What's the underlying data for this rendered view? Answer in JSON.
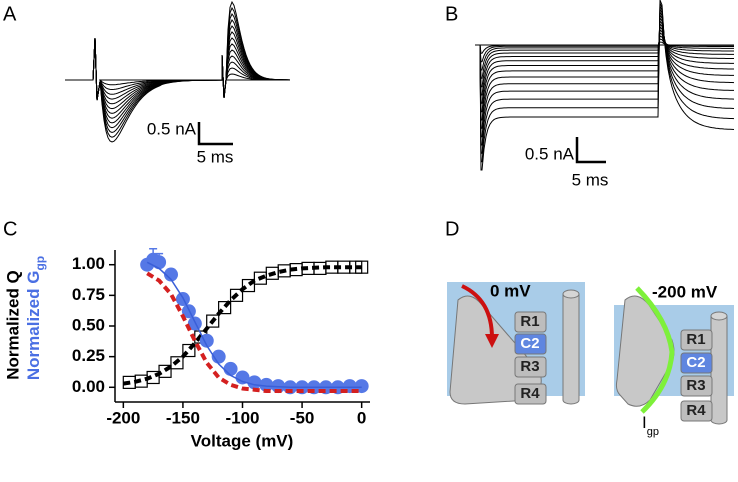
{
  "panels": {
    "a": "A",
    "b": "B",
    "c": "C",
    "d": "D"
  },
  "traces": {
    "a_scale_current": "0.5 nA",
    "a_scale_time": "5 ms",
    "b_scale_current": "0.5 nA",
    "b_scale_time": "5 ms"
  },
  "chart_data": {
    "type": "scatter",
    "xlabel": "Voltage (mV)",
    "ylabel": "Normalized Q",
    "ylabel2": "Normalized G",
    "ylabel2_sub": "gp",
    "xlim": [
      -207,
      7
    ],
    "ylim": [
      -0.12,
      1.12
    ],
    "xticks": [
      -200,
      -150,
      -100,
      -50,
      0
    ],
    "yticks": [
      {
        "value": 0,
        "label": "0.00"
      },
      {
        "value": 0.25,
        "label": "0.25"
      },
      {
        "value": 0.5,
        "label": "0.50"
      },
      {
        "value": 0.75,
        "label": "0.75"
      },
      {
        "value": 1,
        "label": "1.00"
      }
    ],
    "series": [
      {
        "marker": "dashed",
        "color": "#000000",
        "x": [
          -200,
          -190,
          -180,
          -170,
          -160,
          -150,
          -140,
          -130,
          -120,
          -110,
          -100,
          -90,
          -80,
          -70,
          -60,
          -50,
          -40,
          -30,
          -20,
          -10,
          0
        ],
        "values": [
          0.03,
          0.045,
          0.07,
          0.11,
          0.17,
          0.25,
          0.36,
          0.48,
          0.6,
          0.71,
          0.8,
          0.87,
          0.91,
          0.94,
          0.96,
          0.97,
          0.975,
          0.98,
          0.98,
          0.98,
          0.98
        ]
      },
      {
        "marker": "square",
        "color": "#000000",
        "x": [
          -195,
          -185,
          -175,
          -165,
          -155,
          -145,
          -135,
          -125,
          -115,
          -105,
          -95,
          -85,
          -75,
          -65,
          -55,
          -45,
          -35,
          -25,
          -15,
          -5,
          0
        ],
        "values": [
          0.04,
          0.05,
          0.08,
          0.13,
          0.2,
          0.3,
          0.41,
          0.54,
          0.65,
          0.75,
          0.83,
          0.89,
          0.93,
          0.95,
          0.96,
          0.97,
          0.97,
          0.98,
          0.98,
          0.98,
          0.98
        ]
      },
      {
        "marker": "circle",
        "color": "#5578e6",
        "x": [
          -180,
          -175,
          -170,
          -160,
          -150,
          -145,
          -140,
          -130,
          -120,
          -110,
          -100,
          -90,
          -80,
          -70,
          -60,
          -50,
          -40,
          -30,
          -20,
          -10,
          0
        ],
        "values": [
          1.0,
          1.04,
          1.02,
          0.92,
          0.72,
          0.62,
          0.52,
          0.38,
          0.25,
          0.15,
          0.08,
          0.04,
          0.02,
          0.01,
          0.0,
          0.0,
          0.0,
          0.0,
          0.0,
          0.01,
          0.01
        ],
        "errors": [
          null,
          0.09,
          0.07,
          0.04,
          null,
          null,
          null,
          null,
          null,
          null,
          null,
          null,
          null,
          null,
          null,
          null,
          null,
          null,
          null,
          null,
          null
        ]
      },
      {
        "marker": "line",
        "color": "#3a5fd8",
        "x": [
          -180,
          -170,
          -160,
          -150,
          -140,
          -130,
          -120,
          -110,
          -100,
          -90,
          -80,
          -70,
          -60,
          -50,
          -40,
          -30,
          -20,
          -10,
          0
        ],
        "values": [
          1.02,
          0.97,
          0.88,
          0.73,
          0.535,
          0.34,
          0.19,
          0.097,
          0.047,
          0.02,
          0.01,
          0.005,
          0,
          0,
          0,
          0,
          0,
          0,
          0
        ]
      },
      {
        "marker": "dashed",
        "color": "#d42020",
        "x": [
          -180,
          -170,
          -160,
          -150,
          -140,
          -130,
          -120,
          -110,
          -100,
          -90,
          -80,
          -70,
          -60,
          -50,
          -40,
          -30,
          -20,
          -10,
          0
        ],
        "values": [
          0.93,
          0.87,
          0.76,
          0.58,
          0.38,
          0.2,
          0.08,
          0.02,
          -0.01,
          -0.02,
          -0.03,
          -0.03,
          -0.03,
          -0.03,
          -0.03,
          -0.03,
          -0.03,
          -0.03,
          -0.03
        ]
      }
    ]
  },
  "diagram": {
    "left_voltage": "0 mV",
    "right_voltage": "-200 mV",
    "left_segments": [
      "R1",
      "C2",
      "R3",
      "R4"
    ],
    "right_segments": [
      "R1",
      "C2",
      "R3",
      "R4"
    ],
    "current": "I",
    "current_sub": "gp"
  }
}
